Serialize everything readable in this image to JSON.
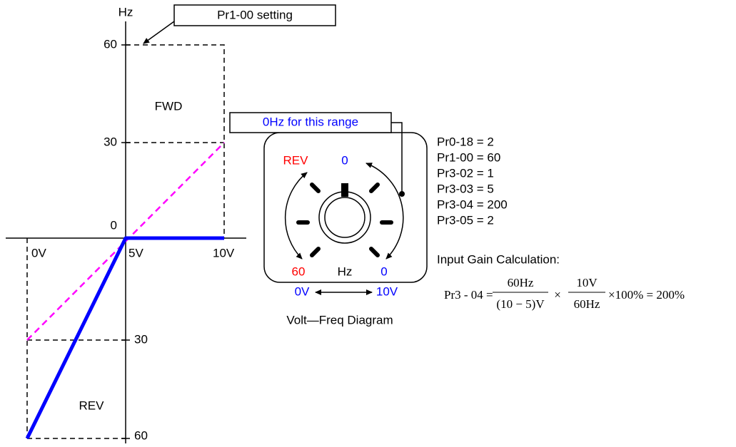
{
  "graph": {
    "y_unit": "Hz",
    "y_ticks_fwd": [
      "60",
      "30",
      "0"
    ],
    "y_ticks_rev": [
      "30",
      "60"
    ],
    "x_ticks": [
      "0V",
      "5V",
      "10V"
    ],
    "fwd_label": "FWD",
    "rev_label": "REV",
    "callout": "Pr1-00 setting"
  },
  "dial": {
    "callout": "0Hz for this range",
    "rev": "REV",
    "top": "0",
    "left": "60",
    "unit": "Hz",
    "right": "0",
    "volt_min": "0V",
    "volt_max": "10V",
    "caption": "Volt—Freq Diagram"
  },
  "parameters": [
    "Pr0-18 = 2",
    "Pr1-00 = 60",
    "Pr3-02 = 1",
    "Pr3-03 = 5",
    "Pr3-04 = 200",
    "Pr3-05 = 2"
  ],
  "calculation": {
    "title": "Input Gain Calculation:",
    "lhs": "Pr3 - 04 =",
    "num1": "60Hz",
    "den1": "(10 − 5)V",
    "times": "×",
    "num2": "10V",
    "den2": "60Hz",
    "rest": "×100% = 200%"
  }
}
